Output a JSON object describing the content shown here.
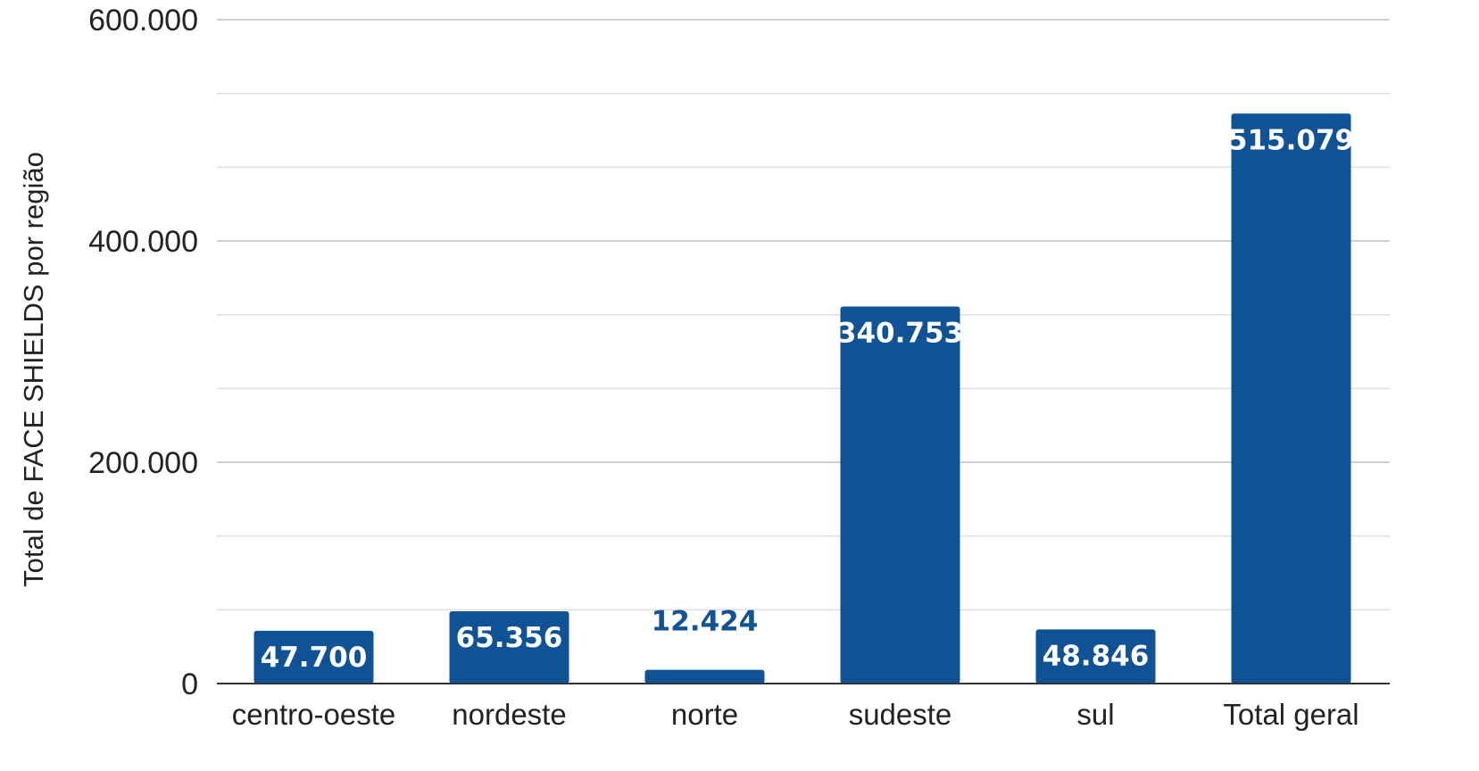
{
  "chart_data": {
    "type": "bar",
    "title": "",
    "xlabel": "",
    "ylabel": "Total de FACE SHIELDS por região",
    "categories": [
      "centro-oeste",
      "nordeste",
      "norte",
      "sudeste",
      "sul",
      "Total geral"
    ],
    "values": [
      47700,
      65356,
      12424,
      340753,
      48846,
      515079
    ],
    "value_labels": [
      "47.700",
      "65.356",
      "12.424",
      "340.753",
      "48.846",
      "515.079"
    ],
    "ylim": [
      0,
      600000
    ],
    "yticks": [
      0,
      200000,
      400000,
      600000
    ],
    "ytick_labels": [
      "0",
      "200.000",
      "400.000",
      "600.000"
    ],
    "minor_gridlines_step": 66667,
    "grid": true,
    "legend": "none",
    "colors": {
      "bar": "#0f5296",
      "label_inside": "#ffffff",
      "label_outside": "#0f5296",
      "gridline": "#dedede",
      "axis": "#333333"
    }
  }
}
